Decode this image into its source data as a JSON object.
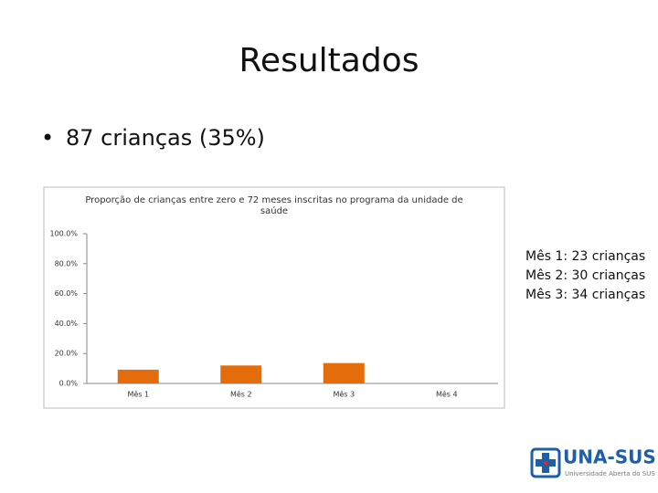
{
  "slide": {
    "title": "Resultados",
    "bullet": "87 crianças (35%)",
    "notes": [
      "Mês 1: 23 crianças",
      "Mês 2: 30 crianças",
      "Mês 3: 34 crianças"
    ]
  },
  "logo": {
    "name": "UNA-SUS",
    "subtitle": "Universidade Aberta do SUS"
  },
  "chart_data": {
    "type": "bar",
    "title": "Proporção de crianças entre zero e 72 meses inscritas no programa da unidade de saúde",
    "categories": [
      "Mês 1",
      "Mês 2",
      "Mês 3",
      "Mês 4"
    ],
    "values": [
      9.2,
      12,
      13.6,
      null
    ],
    "color": "#e46c0a",
    "ylim": [
      0,
      100
    ],
    "yticks": [
      {
        "value": 0,
        "label": "0.0%"
      },
      {
        "value": 20,
        "label": "20.0%"
      },
      {
        "value": 40,
        "label": "40.0%"
      },
      {
        "value": 60,
        "label": "60.0%"
      },
      {
        "value": 80,
        "label": "80.0%"
      },
      {
        "value": 100,
        "label": "100.0%"
      }
    ],
    "grid": false
  }
}
